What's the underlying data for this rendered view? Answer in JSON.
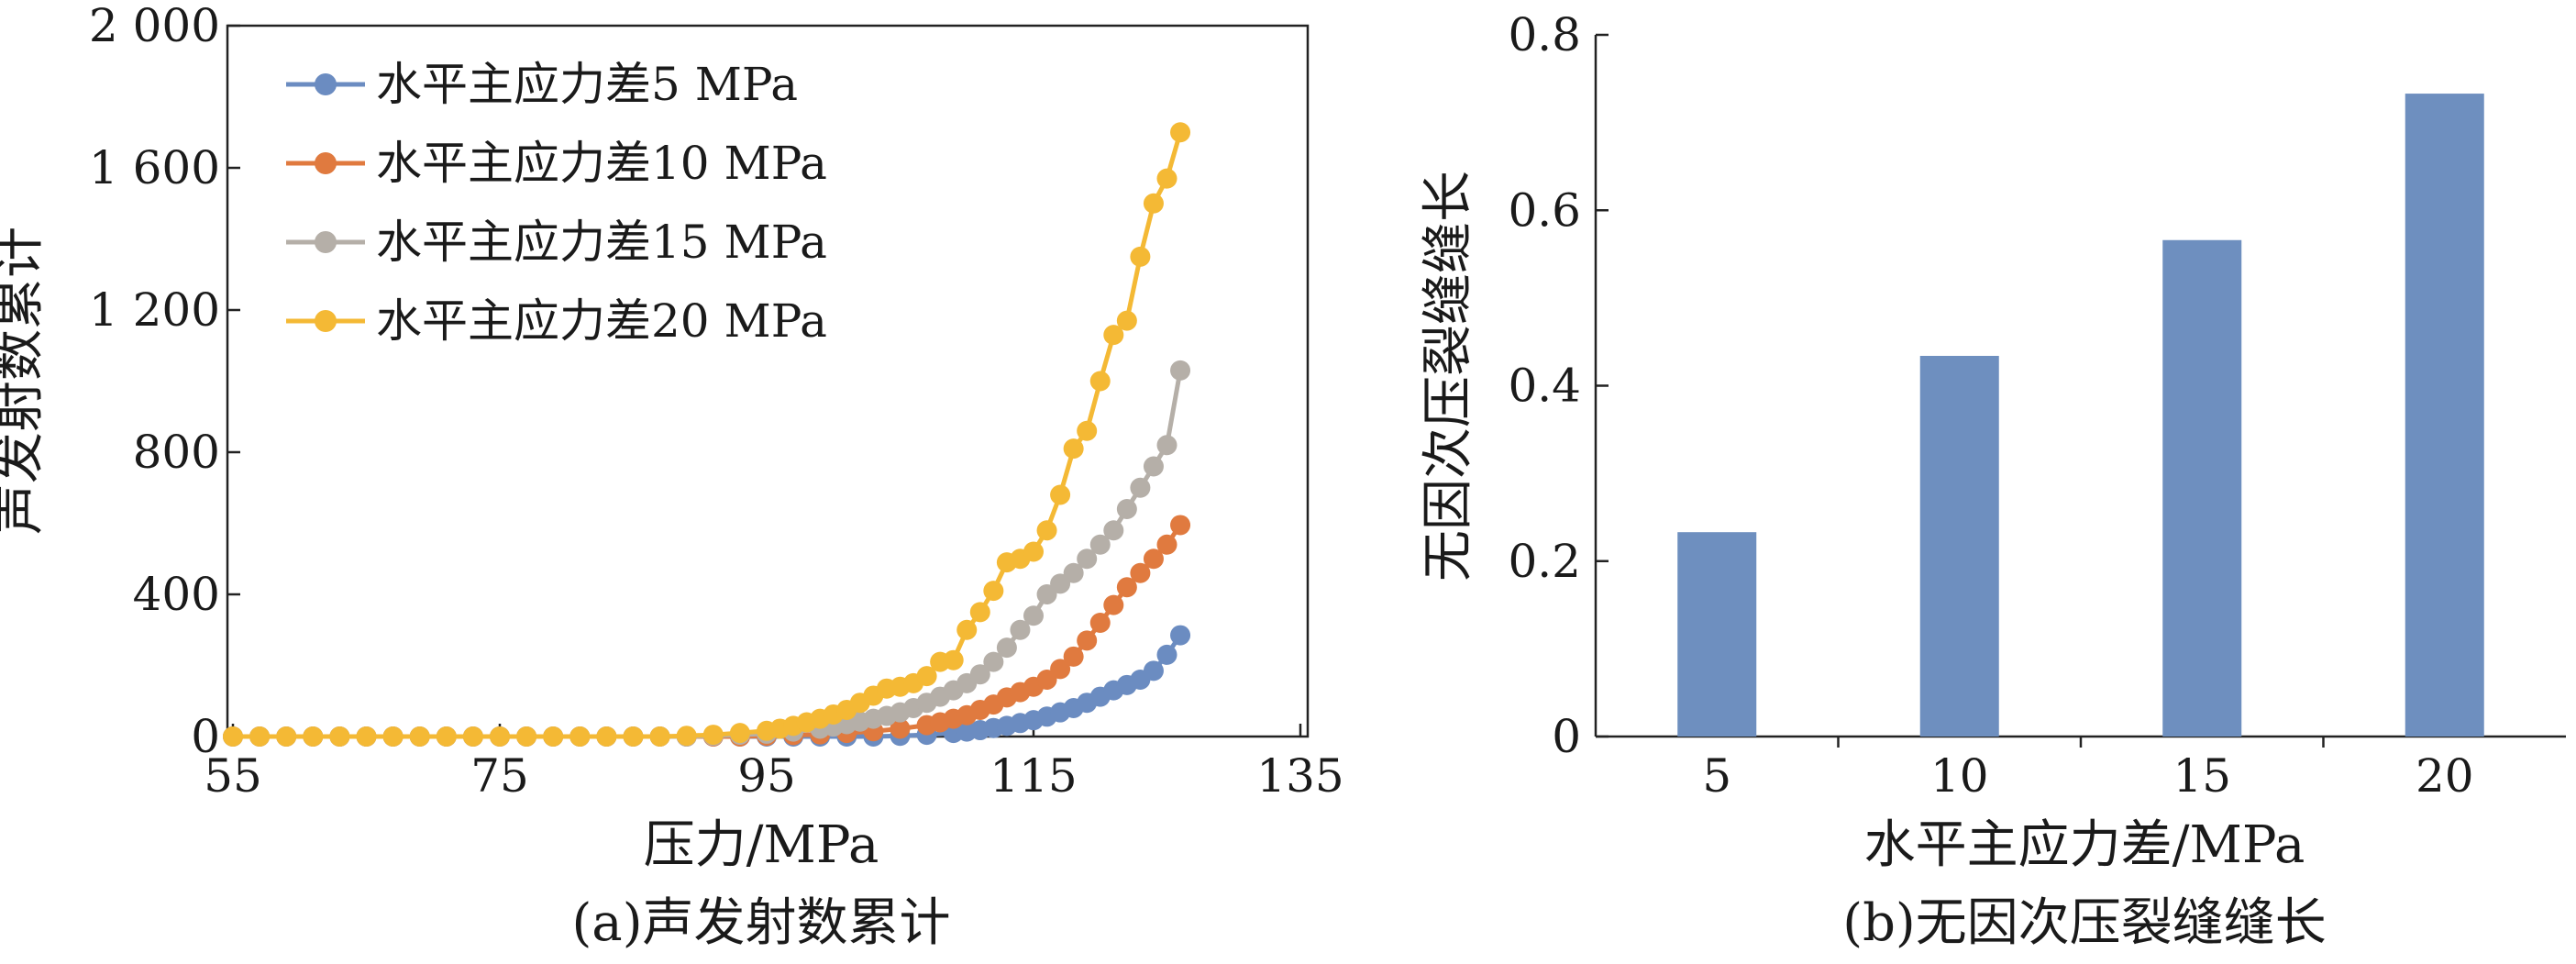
{
  "chart_data": [
    {
      "type": "line",
      "caption": "(a)声发射数累计",
      "xlabel": "压力/MPa",
      "ylabel": "声发射数累计",
      "xlim": [
        55,
        135
      ],
      "ylim": [
        0,
        2000
      ],
      "x_ticks": [
        55,
        75,
        95,
        115,
        135
      ],
      "x_tick_labels": [
        "55",
        "75",
        "95",
        "115",
        "135"
      ],
      "y_ticks": [
        0,
        400,
        800,
        1200,
        1600,
        2000
      ],
      "y_tick_labels": [
        "0",
        "400",
        "800",
        "1 200",
        "1 600",
        "2 000"
      ],
      "grid": false,
      "legend_position": "top-left",
      "colors": [
        "#6b8cc1",
        "#e07a3f",
        "#b5afa8",
        "#f4b935"
      ],
      "series": [
        {
          "name": "水平主应力差5 MPa",
          "color": "#6b8cc1",
          "x": [
            55,
            57,
            59,
            61,
            63,
            65,
            67,
            69,
            71,
            73,
            75,
            77,
            79,
            81,
            83,
            85,
            87,
            89,
            91,
            93,
            95,
            97,
            99,
            101,
            103,
            105,
            107,
            109,
            110,
            111,
            112,
            113,
            114,
            115,
            116,
            117,
            118,
            119,
            120,
            121,
            122,
            123,
            124,
            125,
            126
          ],
          "y": [
            0,
            0,
            0,
            0,
            0,
            0,
            0,
            0,
            0,
            0,
            0,
            0,
            0,
            0,
            0,
            0,
            0,
            0,
            0,
            0,
            0,
            0,
            0,
            0,
            0,
            2,
            5,
            10,
            14,
            18,
            24,
            30,
            38,
            46,
            56,
            68,
            80,
            95,
            112,
            130,
            145,
            160,
            185,
            230,
            285
          ]
        },
        {
          "name": "水平主应力差10 MPa",
          "color": "#e07a3f",
          "x": [
            55,
            57,
            59,
            61,
            63,
            65,
            67,
            69,
            71,
            73,
            75,
            77,
            79,
            81,
            83,
            85,
            87,
            89,
            91,
            93,
            95,
            97,
            99,
            101,
            103,
            105,
            107,
            108,
            109,
            110,
            111,
            112,
            113,
            114,
            115,
            116,
            117,
            118,
            119,
            120,
            121,
            122,
            123,
            124,
            125,
            126
          ],
          "y": [
            0,
            0,
            0,
            0,
            0,
            0,
            0,
            0,
            0,
            0,
            0,
            0,
            0,
            0,
            0,
            0,
            0,
            0,
            0,
            0,
            2,
            4,
            6,
            10,
            15,
            22,
            32,
            40,
            50,
            60,
            75,
            90,
            110,
            125,
            140,
            160,
            190,
            225,
            270,
            320,
            370,
            420,
            460,
            500,
            540,
            595
          ]
        },
        {
          "name": "水平主应力差15 MPa",
          "color": "#b5afa8",
          "x": [
            55,
            57,
            59,
            61,
            63,
            65,
            67,
            69,
            71,
            73,
            75,
            77,
            79,
            81,
            83,
            85,
            87,
            89,
            91,
            93,
            95,
            97,
            99,
            100,
            101,
            102,
            103,
            104,
            105,
            106,
            107,
            108,
            109,
            110,
            111,
            112,
            113,
            114,
            115,
            116,
            117,
            118,
            119,
            120,
            121,
            122,
            123,
            124,
            125,
            126
          ],
          "y": [
            0,
            0,
            0,
            0,
            0,
            0,
            0,
            0,
            0,
            0,
            0,
            0,
            0,
            0,
            0,
            0,
            0,
            0,
            2,
            5,
            8,
            14,
            22,
            28,
            35,
            42,
            50,
            58,
            68,
            80,
            95,
            112,
            130,
            150,
            175,
            210,
            250,
            300,
            340,
            400,
            430,
            460,
            500,
            540,
            580,
            640,
            700,
            760,
            820,
            1030
          ]
        },
        {
          "name": "水平主应力差20 MPa",
          "color": "#f4b935",
          "x": [
            55,
            57,
            59,
            61,
            63,
            65,
            67,
            69,
            71,
            73,
            75,
            77,
            79,
            81,
            83,
            85,
            87,
            89,
            91,
            93,
            95,
            96,
            97,
            98,
            99,
            100,
            101,
            102,
            103,
            104,
            105,
            106,
            107,
            108,
            109,
            110,
            111,
            112,
            113,
            114,
            115,
            116,
            117,
            118,
            119,
            120,
            121,
            122,
            123,
            124,
            125,
            126
          ],
          "y": [
            0,
            0,
            0,
            0,
            0,
            0,
            0,
            0,
            0,
            0,
            0,
            0,
            0,
            0,
            0,
            0,
            0,
            2,
            5,
            10,
            16,
            22,
            30,
            40,
            50,
            62,
            75,
            95,
            115,
            135,
            140,
            150,
            170,
            210,
            215,
            300,
            350,
            410,
            490,
            500,
            520,
            580,
            680,
            810,
            860,
            1000,
            1130,
            1170,
            1350,
            1500,
            1570,
            1700
          ]
        }
      ]
    },
    {
      "type": "bar",
      "caption": "(b)无因次压裂缝缝长",
      "xlabel": "水平主应力差/MPa",
      "ylabel": "无因次压裂缝缝长",
      "categories": [
        "5",
        "10",
        "15",
        "20"
      ],
      "values": [
        0.233,
        0.434,
        0.566,
        0.733
      ],
      "ylim": [
        0,
        0.8
      ],
      "y_ticks": [
        0,
        0.2,
        0.4,
        0.6,
        0.8
      ],
      "y_tick_labels": [
        "0",
        "0.2",
        "0.4",
        "0.6",
        "0.8"
      ],
      "grid": false,
      "bar_color": "#6e8fbf"
    }
  ]
}
